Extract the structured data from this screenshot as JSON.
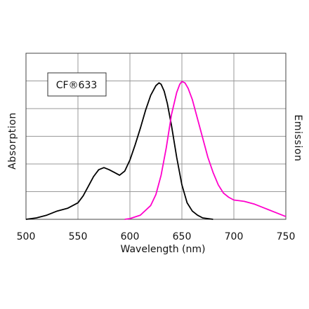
{
  "chart_data": {
    "type": "line",
    "xlabel": "Wavelength (nm)",
    "left_label": "Absorption",
    "right_label": "Emission",
    "legend": "CF®633",
    "xlim": [
      500,
      750
    ],
    "ylim": [
      0,
      1
    ],
    "x_ticks": [
      500,
      550,
      600,
      650,
      700,
      750
    ],
    "grid": true,
    "series": [
      {
        "color": "#000000",
        "x": [
          500,
          510,
          520,
          530,
          540,
          550,
          555,
          560,
          565,
          570,
          575,
          580,
          585,
          590,
          595,
          600,
          605,
          610,
          615,
          620,
          625,
          628,
          630,
          633,
          636,
          640,
          645,
          650,
          655,
          660,
          665,
          670,
          675,
          680
        ],
        "y": [
          0,
          0.01,
          0.03,
          0.06,
          0.08,
          0.12,
          0.17,
          0.24,
          0.31,
          0.36,
          0.375,
          0.36,
          0.34,
          0.32,
          0.35,
          0.43,
          0.54,
          0.66,
          0.79,
          0.9,
          0.97,
          0.99,
          0.98,
          0.93,
          0.84,
          0.68,
          0.45,
          0.25,
          0.12,
          0.06,
          0.03,
          0.01,
          0.005,
          0
        ]
      },
      {
        "color": "#ff00cc",
        "x": [
          595,
          600,
          610,
          620,
          625,
          630,
          635,
          640,
          645,
          648,
          650,
          653,
          656,
          660,
          665,
          670,
          675,
          680,
          685,
          690,
          695,
          700,
          705,
          710,
          720,
          730,
          740,
          750
        ],
        "y": [
          0,
          0.005,
          0.03,
          0.1,
          0.18,
          0.32,
          0.52,
          0.76,
          0.92,
          0.98,
          1.0,
          0.99,
          0.95,
          0.87,
          0.73,
          0.59,
          0.45,
          0.34,
          0.25,
          0.19,
          0.16,
          0.14,
          0.135,
          0.13,
          0.11,
          0.08,
          0.05,
          0.02
        ]
      }
    ]
  }
}
